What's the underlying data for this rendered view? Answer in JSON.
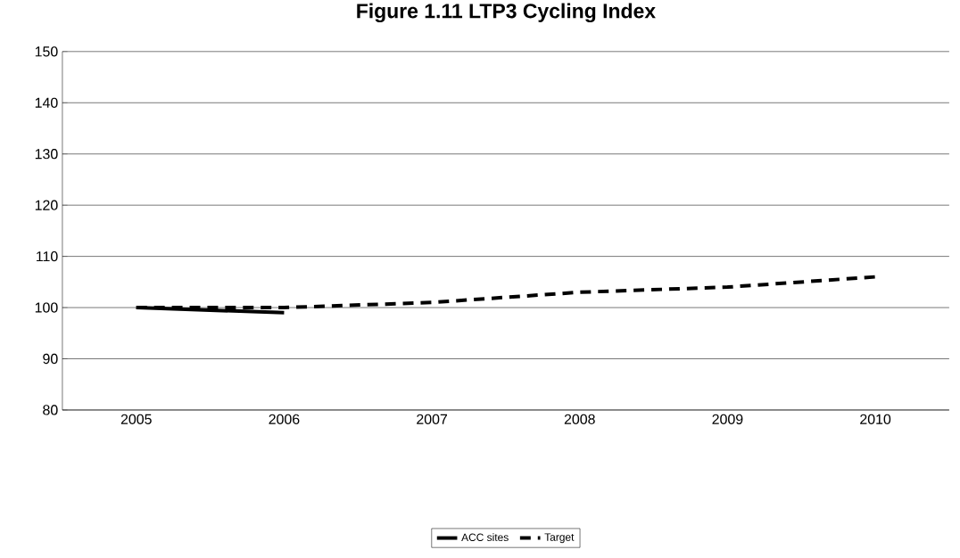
{
  "chart_data": {
    "type": "line",
    "title": "Figure 1.11 LTP3 Cycling Index",
    "categories": [
      "2005",
      "2006",
      "2007",
      "2008",
      "2009",
      "2010"
    ],
    "series": [
      {
        "name": "ACC sites",
        "color": "#000000",
        "line_style": "solid",
        "values": [
          100,
          99,
          null,
          null,
          null,
          null
        ]
      },
      {
        "name": "Target",
        "color": "#000000",
        "line_style": "dashed",
        "values": [
          100,
          100,
          101,
          103,
          104,
          106
        ]
      }
    ],
    "ylim": [
      80,
      150
    ],
    "yticks": [
      80,
      90,
      100,
      110,
      120,
      130,
      140,
      150
    ],
    "grid": "y",
    "legend": "bottom",
    "marker": "none"
  }
}
